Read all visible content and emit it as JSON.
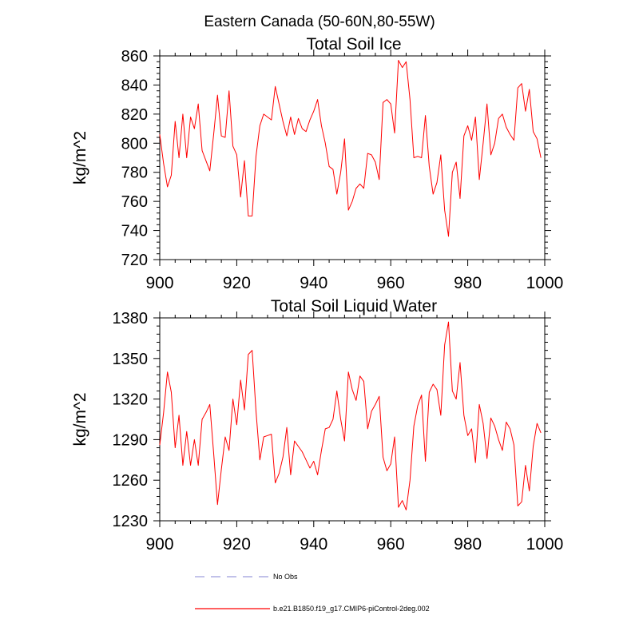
{
  "figure": {
    "title": "Eastern Canada (50-60N,80-55W)"
  },
  "legend": {
    "entries": [
      {
        "label": "No Obs",
        "color": "#9c9cdc",
        "style": "dashed"
      },
      {
        "label": "b.e21.B1850.f19_g17.CMIP6-piControl-2deg.002",
        "color": "#ff0000",
        "style": "solid"
      }
    ]
  },
  "chart_data": [
    {
      "type": "line",
      "title": "Total Soil Ice",
      "xlabel": "",
      "ylabel": "kg/m^2",
      "xlim": [
        900,
        1000
      ],
      "ylim": [
        720,
        860
      ],
      "xticks": [
        900,
        920,
        940,
        960,
        980,
        1000
      ],
      "yticks": [
        720,
        740,
        760,
        780,
        800,
        820,
        840,
        860
      ],
      "grid": false,
      "series": [
        {
          "name": "b.e21.B1850.f19_g17.CMIP6-piControl-2deg.002",
          "color": "#ff0000",
          "x_start": 900,
          "values": [
            806,
            786,
            770,
            778,
            815,
            790,
            820,
            790,
            818,
            810,
            827,
            795,
            788,
            781,
            806,
            833,
            805,
            804,
            836,
            798,
            792,
            763,
            788,
            750,
            750,
            791,
            812,
            820,
            818,
            816,
            839,
            827,
            815,
            805,
            818,
            806,
            817,
            810,
            808,
            816,
            822,
            830,
            812,
            800,
            784,
            782,
            765,
            780,
            803,
            754,
            760,
            769,
            772,
            769,
            793,
            792,
            787,
            775,
            828,
            830,
            827,
            807,
            857,
            852,
            856,
            830,
            790,
            791,
            790,
            819,
            784,
            765,
            773,
            792,
            754,
            736,
            780,
            787,
            762,
            805,
            812,
            802,
            818,
            775,
            800,
            827,
            792,
            800,
            817,
            820,
            811,
            806,
            802,
            838,
            841,
            822,
            837,
            808,
            803,
            790
          ]
        }
      ]
    },
    {
      "type": "line",
      "title": "Total Soil Liquid Water",
      "xlabel": "",
      "ylabel": "kg/m^2",
      "xlim": [
        900,
        1000
      ],
      "ylim": [
        1230,
        1380
      ],
      "xticks": [
        900,
        920,
        940,
        960,
        980,
        1000
      ],
      "yticks": [
        1230,
        1260,
        1290,
        1320,
        1350,
        1380
      ],
      "grid": false,
      "series": [
        {
          "name": "b.e21.B1850.f19_g17.CMIP6-piControl-2deg.002",
          "color": "#ff0000",
          "x_start": 900,
          "values": [
            1286,
            1310,
            1340,
            1325,
            1284,
            1308,
            1271,
            1296,
            1271,
            1290,
            1271,
            1305,
            1310,
            1316,
            1280,
            1242,
            1268,
            1292,
            1282,
            1320,
            1301,
            1334,
            1312,
            1353,
            1356,
            1311,
            1275,
            1292,
            1293,
            1294,
            1258,
            1265,
            1277,
            1299,
            1264,
            1289,
            1285,
            1281,
            1275,
            1269,
            1274,
            1264,
            1282,
            1298,
            1299,
            1305,
            1326,
            1305,
            1289,
            1340,
            1327,
            1319,
            1337,
            1333,
            1298,
            1311,
            1316,
            1322,
            1277,
            1267,
            1272,
            1292,
            1240,
            1245,
            1238,
            1260,
            1300,
            1315,
            1323,
            1274,
            1325,
            1331,
            1327,
            1308,
            1360,
            1377,
            1326,
            1320,
            1347,
            1308,
            1293,
            1298,
            1273,
            1316,
            1302,
            1276,
            1306,
            1300,
            1290,
            1282,
            1303,
            1298,
            1286,
            1241,
            1244,
            1271,
            1252,
            1285,
            1302,
            1295
          ]
        }
      ]
    }
  ]
}
